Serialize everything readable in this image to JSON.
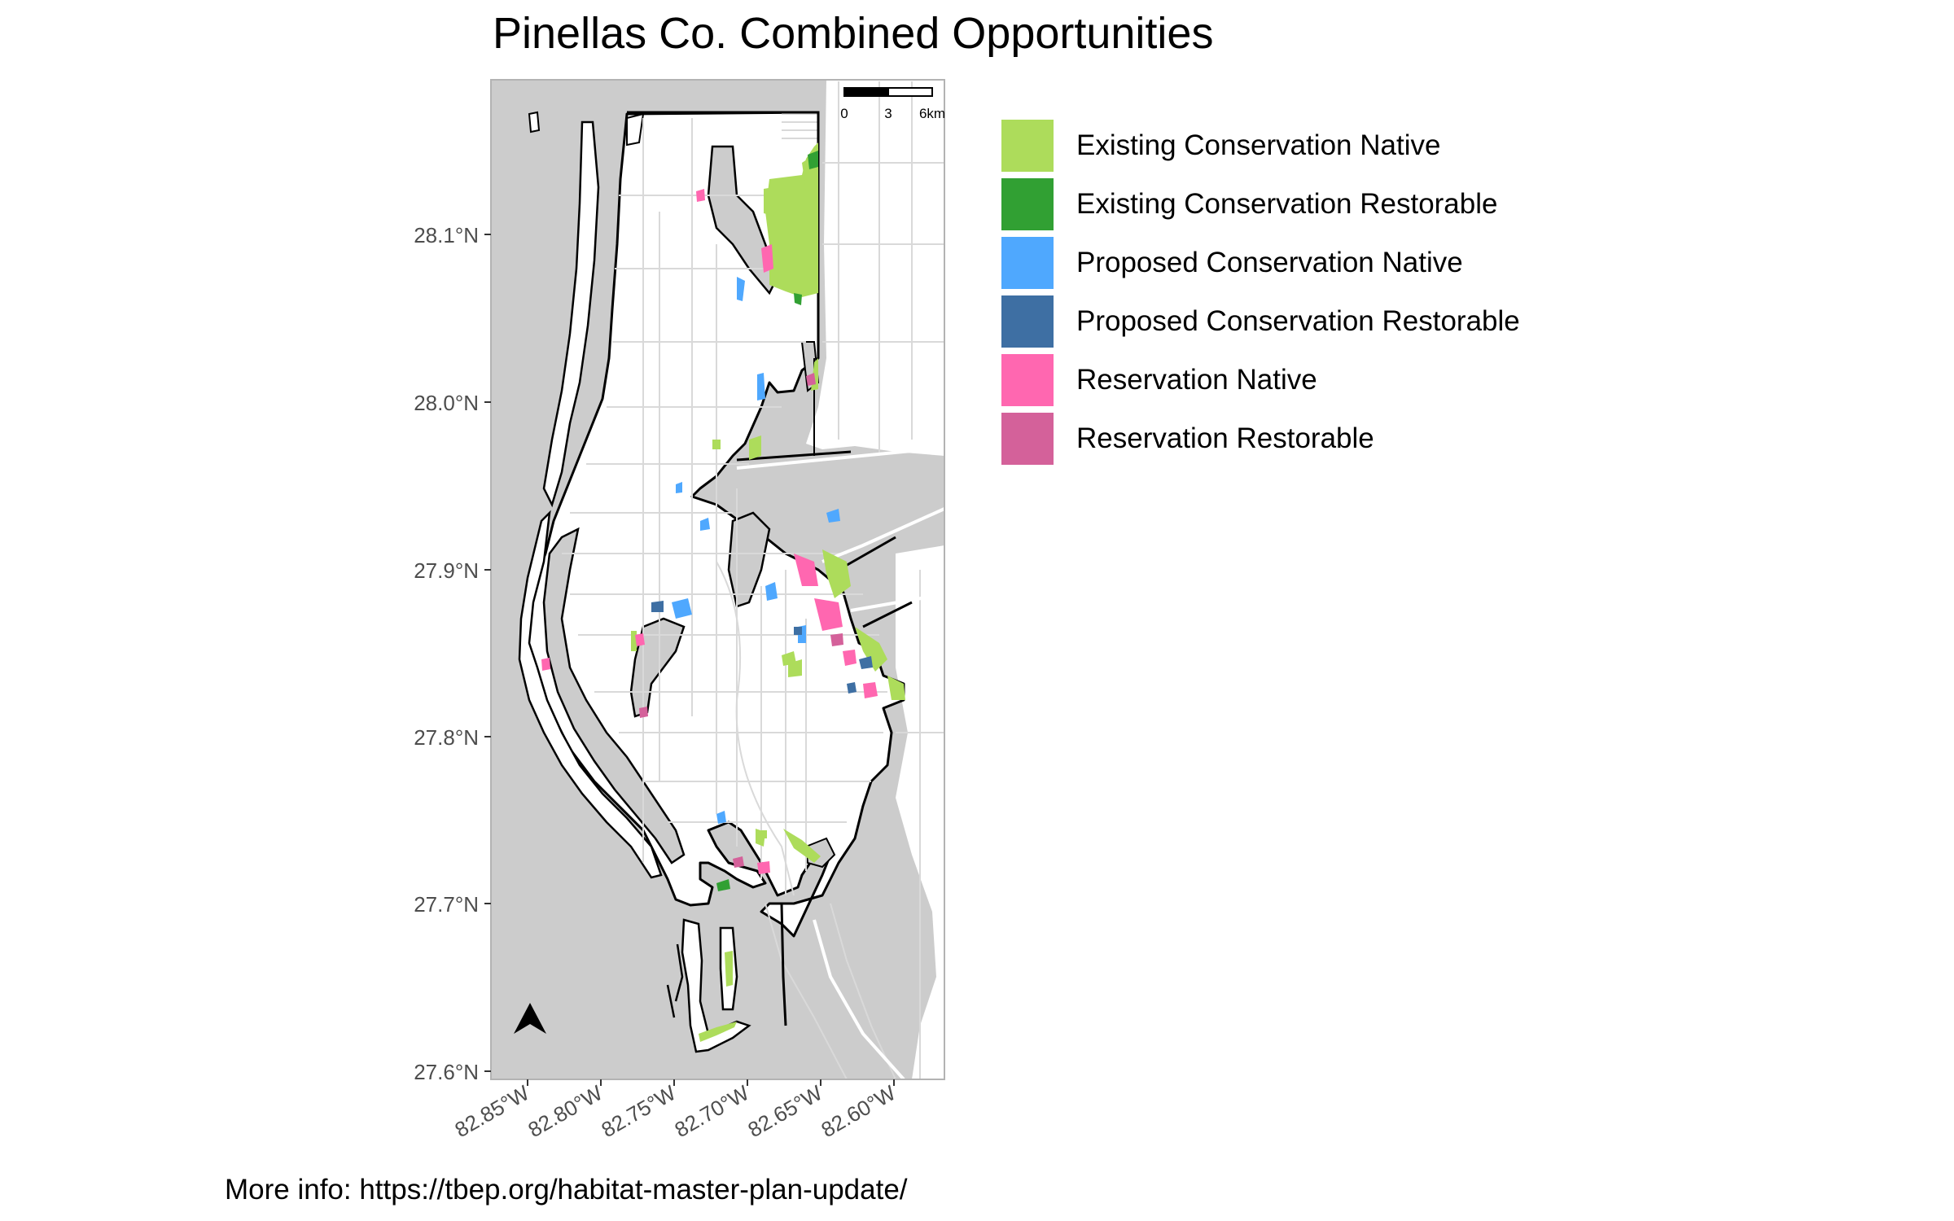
{
  "title": "Pinellas Co. Combined Opportunities",
  "caption": "More info: https://tbep.org/habitat-master-plan-update/",
  "map": {
    "background": "#cccccc",
    "land": "#ffffff",
    "outline": "#000000",
    "roads": "#d9d9d9",
    "lat_ticks": [
      "28.1°N",
      "28.0°N",
      "27.9°N",
      "27.8°N",
      "27.7°N",
      "27.6°N"
    ],
    "lon_ticks": [
      "82.85°W",
      "82.80°W",
      "82.75°W",
      "82.70°W",
      "82.65°W",
      "82.60°W"
    ],
    "scale_bar": {
      "labels": [
        "0",
        "3",
        "6km"
      ]
    },
    "north_arrow": "north-arrow-icon"
  },
  "legend": {
    "items": [
      {
        "label": "Existing Conservation Native",
        "color": "#addc5b"
      },
      {
        "label": "Existing Conservation Restorable",
        "color": "#31a033"
      },
      {
        "label": "Proposed Conservation Native",
        "color": "#4fa8fe"
      },
      {
        "label": "Proposed Conservation Restorable",
        "color": "#3e6fa3"
      },
      {
        "label": "Reservation Native",
        "color": "#ff67b0"
      },
      {
        "label": "Reservation Restorable",
        "color": "#d4619a"
      }
    ]
  }
}
